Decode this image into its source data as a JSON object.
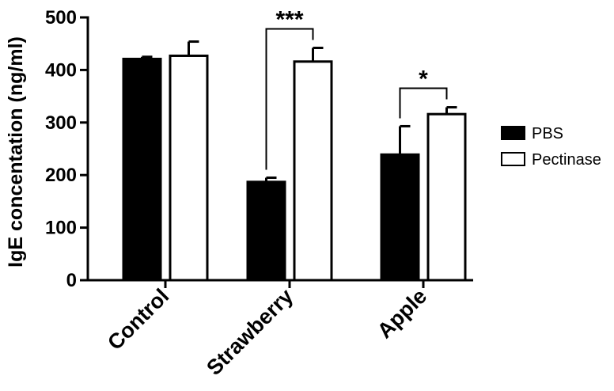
{
  "chart_data": {
    "type": "bar",
    "ylabel": "IgE concentation (ng/ml)",
    "xlabel": "",
    "ylim": [
      0,
      500
    ],
    "yticks": [
      "0",
      "100",
      "200",
      "300",
      "400",
      "500"
    ],
    "categories": [
      "Control",
      "Strawberry",
      "Apple"
    ],
    "series": [
      {
        "name": "PBS",
        "values": [
          421,
          187,
          239
        ],
        "errors": [
          4,
          8,
          54
        ],
        "fill": "#000000"
      },
      {
        "name": "Pectinase",
        "values": [
          427,
          416,
          316
        ],
        "errors": [
          27,
          26,
          13
        ],
        "fill": "#ffffff"
      }
    ],
    "significance": [
      {
        "category": "Strawberry",
        "label": "***"
      },
      {
        "category": "Apple",
        "label": "*"
      }
    ],
    "legend_position": "right",
    "grid": false
  }
}
